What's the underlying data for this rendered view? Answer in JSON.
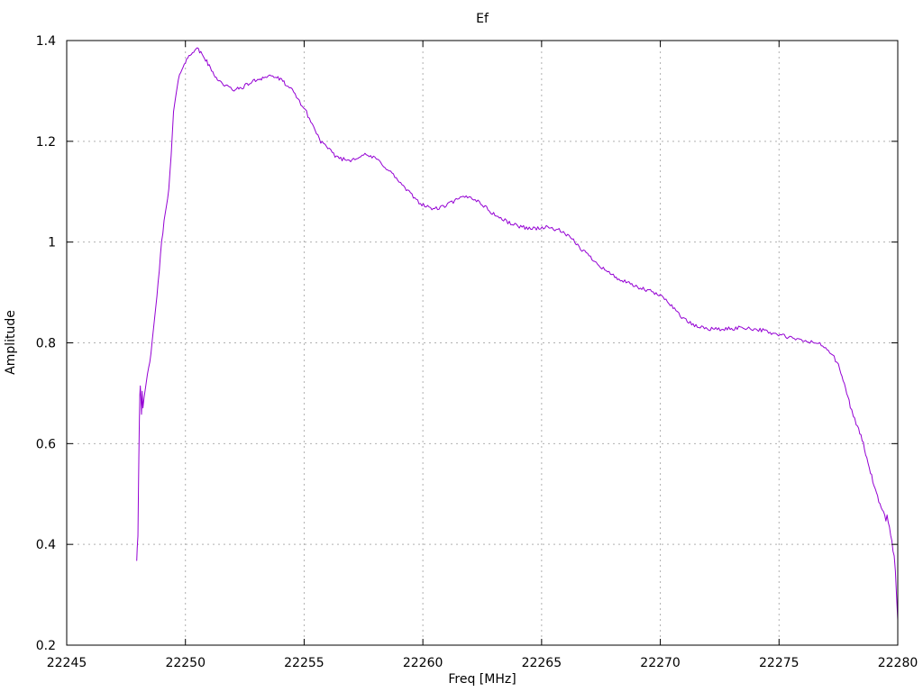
{
  "chart_data": {
    "type": "line",
    "title": "Ef",
    "xlabel": "Freq [MHz]",
    "ylabel": "Amplitude",
    "xlim": [
      22245,
      22280
    ],
    "ylim": [
      0.2,
      1.4
    ],
    "xticks": [
      22245,
      22250,
      22255,
      22260,
      22265,
      22270,
      22275,
      22280
    ],
    "yticks": [
      0.2,
      0.4,
      0.6,
      0.8,
      1,
      1.2,
      1.4
    ],
    "grid": true,
    "legend_position": "none",
    "background_color": "#ffffff",
    "grid_color": "#b0b0b0",
    "axis_color": "#000000",
    "line_color": "#9400d3",
    "noise_amplitude": 0.004,
    "series": [
      {
        "name": "Ef",
        "points": [
          [
            22247.95,
            0.368
          ],
          [
            22247.97,
            0.395
          ],
          [
            22248.0,
            0.42
          ],
          [
            22248.02,
            0.5
          ],
          [
            22248.04,
            0.58
          ],
          [
            22248.06,
            0.645
          ],
          [
            22248.08,
            0.7
          ],
          [
            22248.1,
            0.715
          ],
          [
            22248.13,
            0.69
          ],
          [
            22248.15,
            0.655
          ],
          [
            22248.18,
            0.7
          ],
          [
            22248.21,
            0.668
          ],
          [
            22248.26,
            0.692
          ],
          [
            22248.32,
            0.71
          ],
          [
            22248.4,
            0.735
          ],
          [
            22248.5,
            0.765
          ],
          [
            22248.6,
            0.8
          ],
          [
            22248.7,
            0.845
          ],
          [
            22248.8,
            0.895
          ],
          [
            22248.9,
            0.945
          ],
          [
            22249.0,
            1.0
          ],
          [
            22249.1,
            1.04
          ],
          [
            22249.2,
            1.075
          ],
          [
            22249.3,
            1.105
          ],
          [
            22249.4,
            1.17
          ],
          [
            22249.5,
            1.26
          ],
          [
            22249.6,
            1.29
          ],
          [
            22249.7,
            1.32
          ],
          [
            22249.85,
            1.345
          ],
          [
            22250.0,
            1.358
          ],
          [
            22250.15,
            1.368
          ],
          [
            22250.3,
            1.378
          ],
          [
            22250.45,
            1.385
          ],
          [
            22250.6,
            1.378
          ],
          [
            22250.75,
            1.37
          ],
          [
            22250.9,
            1.358
          ],
          [
            22251.1,
            1.34
          ],
          [
            22251.3,
            1.327
          ],
          [
            22251.5,
            1.317
          ],
          [
            22251.7,
            1.31
          ],
          [
            22251.9,
            1.305
          ],
          [
            22252.1,
            1.302
          ],
          [
            22252.3,
            1.305
          ],
          [
            22252.5,
            1.31
          ],
          [
            22252.7,
            1.315
          ],
          [
            22252.9,
            1.32
          ],
          [
            22253.1,
            1.324
          ],
          [
            22253.3,
            1.327
          ],
          [
            22253.55,
            1.33
          ],
          [
            22253.8,
            1.328
          ],
          [
            22254.0,
            1.322
          ],
          [
            22254.2,
            1.315
          ],
          [
            22254.5,
            1.3
          ],
          [
            22254.8,
            1.28
          ],
          [
            22255.1,
            1.257
          ],
          [
            22255.4,
            1.228
          ],
          [
            22255.7,
            1.2
          ],
          [
            22256.0,
            1.185
          ],
          [
            22256.3,
            1.172
          ],
          [
            22256.6,
            1.165
          ],
          [
            22256.9,
            1.162
          ],
          [
            22257.2,
            1.168
          ],
          [
            22257.5,
            1.173
          ],
          [
            22257.8,
            1.17
          ],
          [
            22258.1,
            1.163
          ],
          [
            22258.4,
            1.15
          ],
          [
            22258.7,
            1.136
          ],
          [
            22259.0,
            1.12
          ],
          [
            22259.3,
            1.104
          ],
          [
            22259.6,
            1.09
          ],
          [
            22259.9,
            1.077
          ],
          [
            22260.2,
            1.069
          ],
          [
            22260.5,
            1.066
          ],
          [
            22260.8,
            1.069
          ],
          [
            22261.1,
            1.076
          ],
          [
            22261.4,
            1.083
          ],
          [
            22261.7,
            1.089
          ],
          [
            22261.95,
            1.09
          ],
          [
            22262.2,
            1.085
          ],
          [
            22262.5,
            1.075
          ],
          [
            22262.8,
            1.062
          ],
          [
            22263.1,
            1.052
          ],
          [
            22263.4,
            1.044
          ],
          [
            22263.7,
            1.037
          ],
          [
            22264.0,
            1.032
          ],
          [
            22264.3,
            1.029
          ],
          [
            22264.6,
            1.027
          ],
          [
            22264.9,
            1.028
          ],
          [
            22265.2,
            1.029
          ],
          [
            22265.5,
            1.027
          ],
          [
            22265.8,
            1.022
          ],
          [
            22266.1,
            1.012
          ],
          [
            22266.4,
            1.0
          ],
          [
            22266.7,
            0.985
          ],
          [
            22267.0,
            0.973
          ],
          [
            22267.3,
            0.96
          ],
          [
            22267.6,
            0.948
          ],
          [
            22267.9,
            0.937
          ],
          [
            22268.2,
            0.928
          ],
          [
            22268.5,
            0.921
          ],
          [
            22268.8,
            0.915
          ],
          [
            22269.1,
            0.909
          ],
          [
            22269.4,
            0.905
          ],
          [
            22269.7,
            0.9
          ],
          [
            22270.0,
            0.893
          ],
          [
            22270.3,
            0.884
          ],
          [
            22270.6,
            0.867
          ],
          [
            22270.9,
            0.852
          ],
          [
            22271.2,
            0.84
          ],
          [
            22271.5,
            0.833
          ],
          [
            22271.8,
            0.83
          ],
          [
            22272.1,
            0.828
          ],
          [
            22272.4,
            0.827
          ],
          [
            22272.7,
            0.827
          ],
          [
            22273.0,
            0.828
          ],
          [
            22273.3,
            0.83
          ],
          [
            22273.6,
            0.83
          ],
          [
            22273.9,
            0.828
          ],
          [
            22274.2,
            0.826
          ],
          [
            22274.5,
            0.822
          ],
          [
            22274.8,
            0.818
          ],
          [
            22275.1,
            0.815
          ],
          [
            22275.4,
            0.811
          ],
          [
            22275.7,
            0.807
          ],
          [
            22276.0,
            0.804
          ],
          [
            22276.3,
            0.802
          ],
          [
            22276.6,
            0.8
          ],
          [
            22276.9,
            0.792
          ],
          [
            22277.2,
            0.78
          ],
          [
            22277.5,
            0.755
          ],
          [
            22277.65,
            0.733
          ],
          [
            22277.8,
            0.71
          ],
          [
            22278.0,
            0.675
          ],
          [
            22278.25,
            0.64
          ],
          [
            22278.45,
            0.615
          ],
          [
            22278.55,
            0.6
          ],
          [
            22278.7,
            0.57
          ],
          [
            22278.9,
            0.535
          ],
          [
            22279.1,
            0.5
          ],
          [
            22279.25,
            0.478
          ],
          [
            22279.4,
            0.462
          ],
          [
            22279.5,
            0.447
          ],
          [
            22279.55,
            0.458
          ],
          [
            22279.65,
            0.435
          ],
          [
            22279.75,
            0.405
          ],
          [
            22279.85,
            0.375
          ],
          [
            22279.9,
            0.345
          ],
          [
            22279.95,
            0.3
          ],
          [
            22280.0,
            0.25
          ]
        ]
      }
    ]
  }
}
